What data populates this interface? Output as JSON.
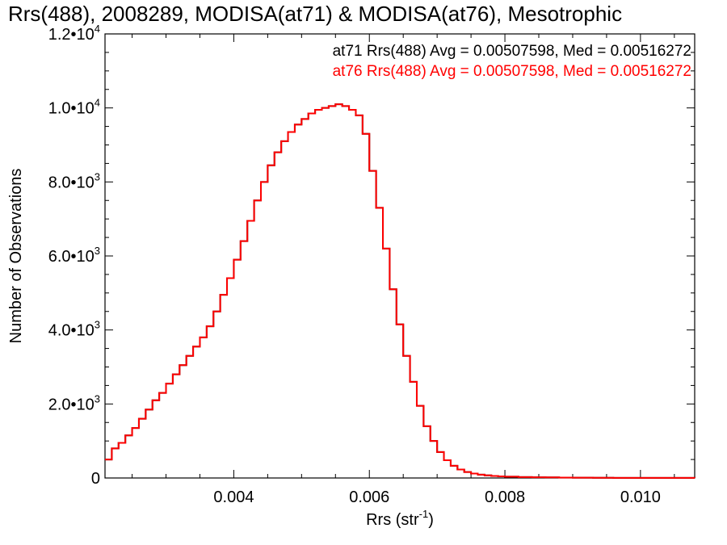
{
  "chart_data": {
    "type": "step-histogram",
    "title": "Rrs(488), 2008289, MODISA(at71) & MODISA(at76), Mesotrophic",
    "xlabel": "Rrs (str",
    "xlabel_sup": "-1",
    "xlabel_close": ")",
    "ylabel": "Number of Observations",
    "xlim": [
      0.0021,
      0.0108
    ],
    "ylim": [
      0,
      12000
    ],
    "x_ticks": [
      {
        "value": 0.004,
        "label": "0.004"
      },
      {
        "value": 0.006,
        "label": "0.006"
      },
      {
        "value": 0.008,
        "label": "0.008"
      },
      {
        "value": 0.01,
        "label": "0.010"
      }
    ],
    "y_ticks": [
      {
        "value": 0,
        "mant": "0",
        "exp": ""
      },
      {
        "value": 2000,
        "mant": "2.0•10",
        "exp": "3"
      },
      {
        "value": 4000,
        "mant": "4.0•10",
        "exp": "3"
      },
      {
        "value": 6000,
        "mant": "6.0•10",
        "exp": "3"
      },
      {
        "value": 8000,
        "mant": "8.0•10",
        "exp": "3"
      },
      {
        "value": 10000,
        "mant": "1.0•10",
        "exp": "4"
      },
      {
        "value": 12000,
        "mant": "1.2•10",
        "exp": "4"
      }
    ],
    "annotations": [
      {
        "text": "at71 Rrs(488) Avg = 0.00507598, Med = 0.00516272",
        "color": "#000000"
      },
      {
        "text": "at76 Rrs(488) Avg = 0.00507598, Med = 0.00516272",
        "color": "#ff0000"
      }
    ],
    "series": [
      {
        "name": "at71",
        "color": "#000000",
        "x": [
          0.0021,
          0.0022,
          0.0023,
          0.0024,
          0.0025,
          0.0026,
          0.0027,
          0.0028,
          0.0029,
          0.003,
          0.0031,
          0.0032,
          0.0033,
          0.0034,
          0.0035,
          0.0036,
          0.0037,
          0.0038,
          0.0039,
          0.004,
          0.0041,
          0.0042,
          0.0043,
          0.0044,
          0.0045,
          0.0046,
          0.0047,
          0.0048,
          0.0049,
          0.005,
          0.0051,
          0.0052,
          0.0053,
          0.0054,
          0.0055,
          0.0056,
          0.0057,
          0.0058,
          0.0059,
          0.006,
          0.0061,
          0.0062,
          0.0063,
          0.0064,
          0.0065,
          0.0066,
          0.0067,
          0.0068,
          0.0069,
          0.007,
          0.0071,
          0.0072,
          0.0073,
          0.0074,
          0.0075,
          0.0076,
          0.0077,
          0.0078,
          0.0079,
          0.008,
          0.0082,
          0.0084,
          0.0086,
          0.0088,
          0.009,
          0.0093,
          0.0096,
          0.01,
          0.0104,
          0.0108
        ],
        "y": [
          500,
          800,
          950,
          1150,
          1350,
          1600,
          1850,
          2100,
          2300,
          2550,
          2800,
          3050,
          3300,
          3550,
          3800,
          4100,
          4500,
          4950,
          5400,
          5900,
          6400,
          6950,
          7500,
          8000,
          8450,
          8800,
          9100,
          9350,
          9550,
          9700,
          9850,
          9950,
          10000,
          10050,
          10100,
          10050,
          9950,
          9800,
          9300,
          8300,
          7300,
          6200,
          5100,
          4150,
          3300,
          2600,
          1950,
          1400,
          1000,
          700,
          480,
          330,
          230,
          160,
          120,
          90,
          70,
          55,
          45,
          35,
          25,
          20,
          15,
          10,
          8,
          6,
          4,
          3,
          2,
          1
        ]
      },
      {
        "name": "at76",
        "color": "#ff0000",
        "x": [
          0.0021,
          0.0022,
          0.0023,
          0.0024,
          0.0025,
          0.0026,
          0.0027,
          0.0028,
          0.0029,
          0.003,
          0.0031,
          0.0032,
          0.0033,
          0.0034,
          0.0035,
          0.0036,
          0.0037,
          0.0038,
          0.0039,
          0.004,
          0.0041,
          0.0042,
          0.0043,
          0.0044,
          0.0045,
          0.0046,
          0.0047,
          0.0048,
          0.0049,
          0.005,
          0.0051,
          0.0052,
          0.0053,
          0.0054,
          0.0055,
          0.0056,
          0.0057,
          0.0058,
          0.0059,
          0.006,
          0.0061,
          0.0062,
          0.0063,
          0.0064,
          0.0065,
          0.0066,
          0.0067,
          0.0068,
          0.0069,
          0.007,
          0.0071,
          0.0072,
          0.0073,
          0.0074,
          0.0075,
          0.0076,
          0.0077,
          0.0078,
          0.0079,
          0.008,
          0.0082,
          0.0084,
          0.0086,
          0.0088,
          0.009,
          0.0093,
          0.0096,
          0.01,
          0.0104,
          0.0108
        ],
        "y": [
          500,
          800,
          950,
          1150,
          1350,
          1600,
          1850,
          2100,
          2300,
          2550,
          2800,
          3050,
          3300,
          3550,
          3800,
          4100,
          4500,
          4950,
          5400,
          5900,
          6400,
          6950,
          7500,
          8000,
          8450,
          8800,
          9100,
          9350,
          9550,
          9700,
          9850,
          9950,
          10000,
          10050,
          10100,
          10050,
          9950,
          9800,
          9300,
          8300,
          7300,
          6200,
          5100,
          4150,
          3300,
          2600,
          1950,
          1400,
          1000,
          700,
          480,
          330,
          230,
          160,
          120,
          90,
          70,
          55,
          45,
          35,
          25,
          20,
          15,
          10,
          8,
          6,
          4,
          3,
          2,
          1
        ]
      }
    ]
  }
}
